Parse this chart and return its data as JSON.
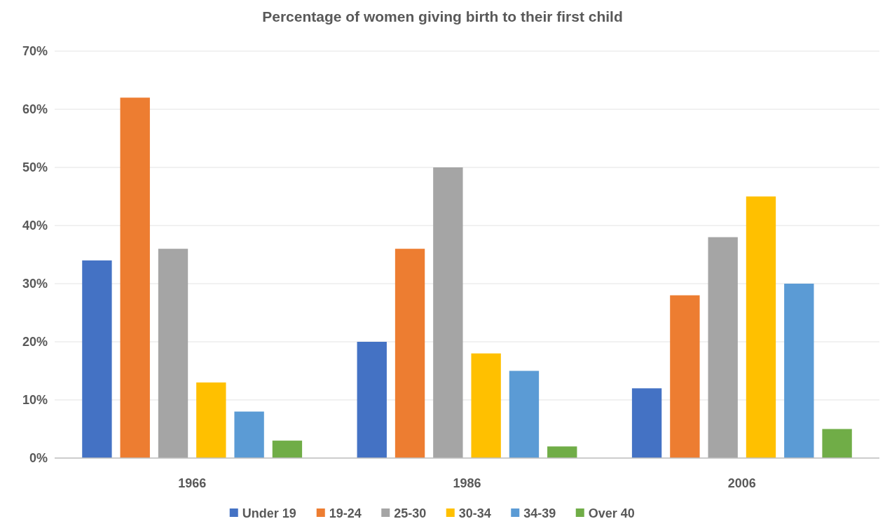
{
  "chart_data": {
    "type": "bar",
    "title": "Percentage of women giving birth to their first child",
    "categories": [
      "1966",
      "1986",
      "2006"
    ],
    "series": [
      {
        "name": "Under 19",
        "color": "#4472c4",
        "values": [
          34,
          20,
          12
        ]
      },
      {
        "name": "19-24",
        "color": "#ed7d31",
        "values": [
          62,
          36,
          28
        ]
      },
      {
        "name": "25-30",
        "color": "#a5a5a5",
        "values": [
          36,
          50,
          38
        ]
      },
      {
        "name": "30-34",
        "color": "#ffc000",
        "values": [
          13,
          18,
          45
        ]
      },
      {
        "name": "34-39",
        "color": "#5b9bd5",
        "values": [
          8,
          15,
          30
        ]
      },
      {
        "name": "Over 40",
        "color": "#70ad47",
        "values": [
          3,
          2,
          5
        ]
      }
    ],
    "ylim": [
      0,
      70
    ],
    "yticks": [
      {
        "value": 0,
        "label": "0%"
      },
      {
        "value": 10,
        "label": "10%"
      },
      {
        "value": 20,
        "label": "20%"
      },
      {
        "value": 30,
        "label": "30%"
      },
      {
        "value": 40,
        "label": "40%"
      },
      {
        "value": 50,
        "label": "50%"
      },
      {
        "value": 60,
        "label": "60%"
      },
      {
        "value": 70,
        "label": "70%"
      }
    ],
    "grid": "y",
    "legend": "bottom"
  }
}
